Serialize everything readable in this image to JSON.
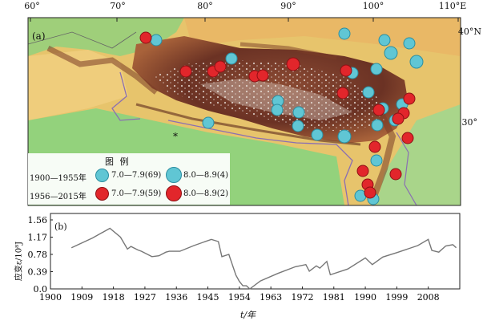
{
  "map": {
    "panel_label": "(a)",
    "lon_labels": [
      "60°",
      "70°",
      "80°",
      "90°",
      "100°",
      "110°E"
    ],
    "lat_labels": [
      "40°N",
      "30°"
    ],
    "small_marker": "*",
    "legend": {
      "title": "图  例",
      "rows": [
        {
          "period": "1900—1955年",
          "cls1": "7.0—7.9(69)",
          "cls2": "8.0—8.9(4)",
          "color": "#60c6d4"
        },
        {
          "period": "1956—2015年",
          "cls1": "7.0—7.9(59)",
          "cls2": "8.0—8.9(2)",
          "color": "#e2262b"
        }
      ]
    },
    "colors": {
      "early_quakes": "#60c6d4",
      "late_quakes": "#e2262b",
      "terrain_low": "#8fd07a",
      "terrain_mid": "#e9c36a",
      "terrain_high": "#6b3224"
    }
  },
  "chart": {
    "panel_label": "(b)",
    "ylabel": "应变ε/10⁸J",
    "xlabel": "t/年",
    "chart_data": {
      "type": "line",
      "x_ticks": [
        "1900",
        "1909",
        "1918",
        "1927",
        "1936",
        "1945",
        "1954",
        "1963",
        "1972",
        "1981",
        "1990",
        "1999",
        "2008"
      ],
      "y_ticks": [
        "0.0",
        "0.39",
        "0.78",
        "1.17",
        "1.56"
      ],
      "xlim": [
        1900,
        2017
      ],
      "ylim": [
        0,
        1.56
      ],
      "series": [
        {
          "x": [
            1906,
            1912,
            1917,
            1920,
            1922,
            1923,
            1925,
            1926,
            1929,
            1931,
            1933,
            1934,
            1937,
            1941,
            1946,
            1948,
            1949,
            1951,
            1953,
            1954,
            1955,
            1956,
            1957,
            1960,
            1965,
            1970,
            1973,
            1974,
            1976,
            1977,
            1979,
            1980,
            1985,
            1990,
            1992,
            1995,
            1999,
            2005,
            2008,
            2009,
            2011,
            2013,
            2015,
            2016
          ],
          "y": [
            0.93,
            1.15,
            1.37,
            1.17,
            0.9,
            0.96,
            0.88,
            0.85,
            0.73,
            0.75,
            0.83,
            0.85,
            0.85,
            0.98,
            1.12,
            1.07,
            0.73,
            0.78,
            0.31,
            0.17,
            0.07,
            0.07,
            0.0,
            0.18,
            0.35,
            0.5,
            0.55,
            0.4,
            0.52,
            0.47,
            0.62,
            0.32,
            0.45,
            0.7,
            0.55,
            0.72,
            0.82,
            0.98,
            1.12,
            0.87,
            0.83,
            0.97,
            1.0,
            0.93
          ]
        }
      ]
    }
  }
}
